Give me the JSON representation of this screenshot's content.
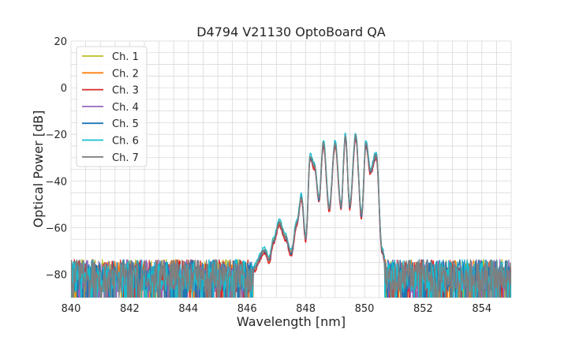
{
  "chart_data": {
    "type": "line",
    "title": "D4794 V21130 OptoBoard QA",
    "xlabel": "Wavelength [nm]",
    "ylabel": "Optical Power [dB]",
    "xlim": [
      840,
      855
    ],
    "ylim": [
      -90,
      20
    ],
    "x_major_ticks": [
      840,
      842,
      844,
      846,
      848,
      850,
      852,
      854
    ],
    "x_tick_labels": [
      "840",
      "842",
      "844",
      "846",
      "848",
      "850",
      "852",
      "854"
    ],
    "y_major_ticks": [
      20,
      0,
      -20,
      -40,
      -60,
      -80
    ],
    "y_tick_labels": [
      "20",
      "0",
      "−20",
      "−40",
      "−60",
      "−80"
    ],
    "x_minor_step": 0.5,
    "y_minor_step": 5,
    "grid": true,
    "legend_position": "top-left",
    "noise_floor_db": -80,
    "noise_floor_range": [
      840,
      846.2
    ],
    "noise_floor_range_right": [
      850.7,
      855
    ],
    "spectrum_profile": {
      "wavelength": [
        846.2,
        846.6,
        846.75,
        846.9,
        847.1,
        847.3,
        847.5,
        847.7,
        847.85,
        848.0,
        848.15,
        848.3,
        848.45,
        848.6,
        848.8,
        849.0,
        849.2,
        849.35,
        849.5,
        849.7,
        849.9,
        850.05,
        850.2,
        850.4,
        850.6,
        850.75
      ],
      "power": [
        -78,
        -70,
        -74,
        -66,
        -58,
        -64,
        -71,
        -58,
        -47,
        -65,
        -30,
        -34,
        -48,
        -24,
        -52,
        -24,
        -51,
        -21,
        -51,
        -21,
        -55,
        -24,
        -36,
        -29,
        -70,
        -78
      ]
    },
    "series": [
      {
        "name": "Ch. 1",
        "color": "#bcbd22",
        "offset": 0.6
      },
      {
        "name": "Ch. 2",
        "color": "#ff7f0e",
        "offset": -0.4
      },
      {
        "name": "Ch. 3",
        "color": "#d62728",
        "offset": -1.2
      },
      {
        "name": "Ch. 4",
        "color": "#9467bd",
        "offset": 0.2
      },
      {
        "name": "Ch. 5",
        "color": "#1f77b4",
        "offset": 0.0
      },
      {
        "name": "Ch. 6",
        "color": "#17becf",
        "offset": 1.5
      },
      {
        "name": "Ch. 7",
        "color": "#7f7f7f",
        "offset": 0.4
      }
    ]
  }
}
